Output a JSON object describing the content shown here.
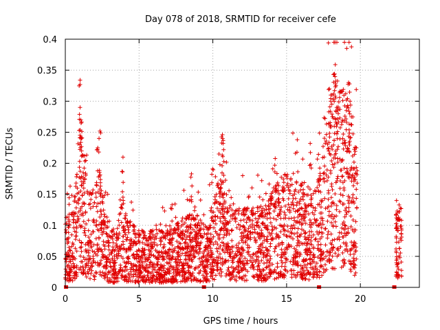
{
  "chart_data": {
    "type": "scatter",
    "title": "Day 078 of 2018, SRMTID for receiver cefe",
    "xlabel": "GPS time / hours",
    "ylabel": "SRMTID / TECUs",
    "xlim": [
      0,
      24
    ],
    "ylim": [
      0,
      0.4
    ],
    "x_ticks": [
      0,
      5,
      10,
      15,
      20
    ],
    "x_tick_labels": [
      "0",
      "5",
      "10",
      "15",
      "20"
    ],
    "y_ticks": [
      0,
      0.05,
      0.1,
      0.15,
      0.2,
      0.25,
      0.3,
      0.35,
      0.4
    ],
    "y_tick_labels": [
      "0",
      "0.05",
      "0.1",
      "0.15",
      "0.2",
      "0.25",
      "0.3",
      "0.35",
      "0.4"
    ],
    "grid": true,
    "marker": "+",
    "color": "#e00000",
    "series": [
      {
        "name": "SRMTID",
        "profile_x": [
          0,
          0.5,
          0.9,
          1.1,
          1.5,
          2.0,
          2.3,
          2.7,
          3.0,
          3.5,
          3.8,
          4.2,
          5.0,
          6.0,
          7.0,
          8.0,
          8.7,
          9.5,
          10.3,
          10.7,
          11.5,
          12.5,
          13.5,
          14.2,
          15.0,
          15.5,
          16.5,
          17.2,
          17.8,
          18.2,
          18.7,
          19.2,
          19.6
        ],
        "profile_y": [
          0.06,
          0.07,
          0.12,
          0.15,
          0.09,
          0.08,
          0.11,
          0.07,
          0.05,
          0.05,
          0.09,
          0.06,
          0.05,
          0.05,
          0.05,
          0.06,
          0.07,
          0.05,
          0.09,
          0.1,
          0.07,
          0.07,
          0.07,
          0.09,
          0.1,
          0.1,
          0.08,
          0.1,
          0.15,
          0.19,
          0.17,
          0.18,
          0.13
        ],
        "segments": [
          [
            0.0,
            19.8
          ],
          [
            22.4,
            22.8
          ]
        ],
        "peaks": [
          {
            "x": 1.0,
            "y": 0.327
          },
          {
            "x": 1.0,
            "y": 0.29
          },
          {
            "x": 1.05,
            "y": 0.27
          },
          {
            "x": 1.1,
            "y": 0.22
          },
          {
            "x": 2.2,
            "y": 0.225
          },
          {
            "x": 2.35,
            "y": 0.252
          },
          {
            "x": 3.85,
            "y": 0.187
          },
          {
            "x": 8.55,
            "y": 0.183
          },
          {
            "x": 10.65,
            "y": 0.246
          },
          {
            "x": 10.7,
            "y": 0.232
          },
          {
            "x": 14.2,
            "y": 0.197
          },
          {
            "x": 16.6,
            "y": 0.232
          },
          {
            "x": 18.0,
            "y": 0.31
          },
          {
            "x": 18.3,
            "y": 0.359
          },
          {
            "x": 18.25,
            "y": 0.344
          },
          {
            "x": 18.4,
            "y": 0.29
          },
          {
            "x": 18.5,
            "y": 0.28
          },
          {
            "x": 19.2,
            "y": 0.33
          },
          {
            "x": 19.3,
            "y": 0.3
          },
          {
            "x": 17.9,
            "y": 0.32
          },
          {
            "x": 22.45,
            "y": 0.14
          },
          {
            "x": 22.5,
            "y": 0.12
          }
        ],
        "late_profile_y": 0.07,
        "zero_markers": [
          0.05,
          9.4,
          17.2,
          22.3
        ]
      }
    ]
  }
}
